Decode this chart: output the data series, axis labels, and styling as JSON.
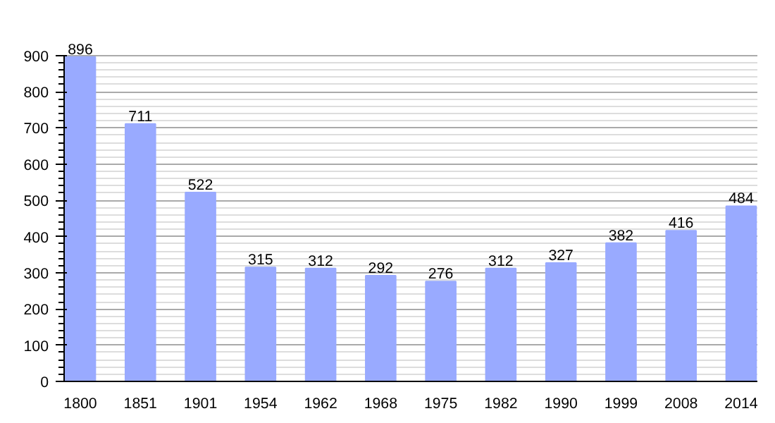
{
  "chart_data": {
    "type": "bar",
    "categories": [
      "1800",
      "1851",
      "1901",
      "1954",
      "1962",
      "1968",
      "1975",
      "1982",
      "1990",
      "1999",
      "2008",
      "2014"
    ],
    "values": [
      896,
      711,
      522,
      315,
      312,
      292,
      276,
      312,
      327,
      382,
      416,
      484
    ],
    "color": "#99aaff",
    "ylim": [
      0,
      900
    ],
    "yticks": [
      0,
      100,
      200,
      300,
      400,
      500,
      600,
      700,
      800,
      900
    ],
    "grid": "y",
    "data_labels": true
  }
}
